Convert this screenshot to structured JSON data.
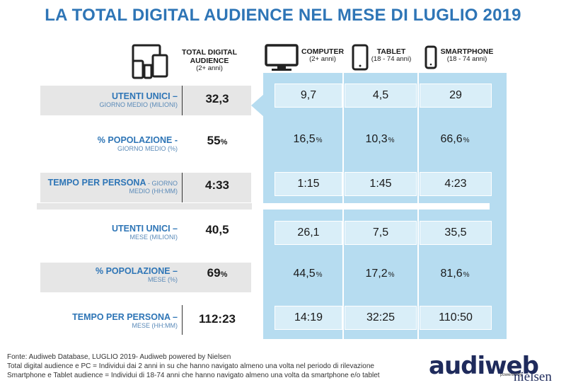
{
  "title": "LA TOTAL DIGITAL AUDIENCE NEL MESE DI LUGLIO 2019",
  "columns": {
    "total": {
      "label_line1": "TOTAL DIGITAL",
      "label_line2": "AUDIENCE",
      "sub": "(2+ anni)",
      "icon": "multi-device-icon"
    },
    "computer": {
      "label": "COMPUTER",
      "sub": "(2+ anni)",
      "icon": "monitor-icon"
    },
    "tablet": {
      "label": "TABLET",
      "sub": "(18 - 74 anni)",
      "icon": "tablet-icon"
    },
    "smartphone": {
      "label": "SMARTPHONE",
      "sub": "(18 - 74 anni)",
      "icon": "smartphone-icon"
    }
  },
  "rows": [
    {
      "label": "UTENTI UNICI –",
      "sub": "GIORNO MEDIO (MILIONI)",
      "total": "32,3",
      "total_unit": "",
      "computer": "9,7",
      "tablet": "4,5",
      "smartphone": "29",
      "unit": ""
    },
    {
      "label": "% POPOLAZIONE -",
      "sub": "GIORNO MEDIO (%)",
      "total": "55",
      "total_unit": "%",
      "computer": "16,5",
      "tablet": "10,3",
      "smartphone": "66,6",
      "unit": "%"
    },
    {
      "label": "TEMPO PER PERSONA",
      "label_inline": " - GIORNO",
      "sub": "MEDIO (HH:MM)",
      "total": "4:33",
      "total_unit": "",
      "computer": "1:15",
      "tablet": "1:45",
      "smartphone": "4:23",
      "unit": ""
    },
    {
      "label": "UTENTI UNICI –",
      "sub": "MESE (MILIONI)",
      "total": "40,5",
      "total_unit": "",
      "computer": "26,1",
      "tablet": "7,5",
      "smartphone": "35,5",
      "unit": ""
    },
    {
      "label": "% POPOLAZIONE –",
      "sub": "MESE (%)",
      "total": "69",
      "total_unit": "%",
      "computer": "44,5",
      "tablet": "17,2",
      "smartphone": "81,6",
      "unit": "%"
    },
    {
      "label": "TEMPO PER PERSONA –",
      "sub": "MESE (HH:MM)",
      "total": "112:23",
      "total_unit": "",
      "computer": "14:19",
      "tablet": "32:25",
      "smartphone": "110:50",
      "unit": ""
    }
  ],
  "footer": {
    "line1": "Fonte: Audiweb Database, LUGLIO 2019- Audiweb powered by Nielsen",
    "line2": "Total digital audience e PC = Individui dai 2 anni in su che hanno navigato almeno una volta nel periodo di rilevazione",
    "line3": "Smartphone e Tablet audience = Individui di 18-74 anni che hanno navigato almeno una volta da smartphone e/o tablet"
  },
  "logo": {
    "audiweb": "audiweb",
    "powered": "powered by",
    "nielsen": "nielsen"
  },
  "colors": {
    "title": "#2e75b6",
    "panel": "#b6dcf0",
    "cell": "#d9eef8",
    "row_gray": "#e6e6e6",
    "logo": "#1f2b5c"
  }
}
